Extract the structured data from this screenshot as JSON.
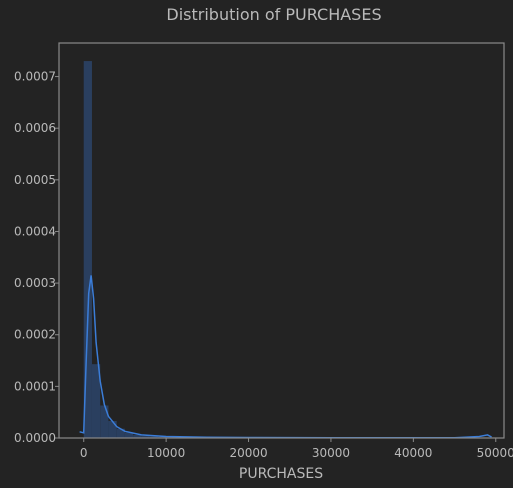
{
  "chart_data": {
    "type": "bar",
    "title": "Distribution of PURCHASES",
    "xlabel": "PURCHASES",
    "ylabel": "",
    "xlim": [
      -3000,
      51000
    ],
    "ylim": [
      0,
      0.000765
    ],
    "xticks": [
      0,
      10000,
      20000,
      30000,
      40000,
      50000
    ],
    "yticks": [
      0.0,
      0.0001,
      0.0002,
      0.0003,
      0.0004,
      0.0005,
      0.0006,
      0.0007
    ],
    "xtick_labels": [
      "0",
      "10000",
      "20000",
      "30000",
      "40000",
      "50000"
    ],
    "ytick_labels": [
      "0.0000",
      "0.0001",
      "0.0002",
      "0.0003",
      "0.0004",
      "0.0005",
      "0.0006",
      "0.0007"
    ],
    "grid": false,
    "histogram": {
      "bin_width": 1000,
      "bins": [
        {
          "x0": 0,
          "x1": 1000,
          "density": 0.00073
        },
        {
          "x0": 1000,
          "x1": 2000,
          "density": 0.000143
        },
        {
          "x0": 2000,
          "x1": 3000,
          "density": 6.3e-05
        },
        {
          "x0": 3000,
          "x1": 4000,
          "density": 3.3e-05
        },
        {
          "x0": 4000,
          "x1": 5000,
          "density": 1.8e-05
        },
        {
          "x0": 5000,
          "x1": 6000,
          "density": 1e-05
        },
        {
          "x0": 6000,
          "x1": 7000,
          "density": 6e-06
        },
        {
          "x0": 7000,
          "x1": 8000,
          "density": 4e-06
        },
        {
          "x0": 8000,
          "x1": 9000,
          "density": 3e-06
        },
        {
          "x0": 9000,
          "x1": 10000,
          "density": 2e-06
        },
        {
          "x0": 10000,
          "x1": 11000,
          "density": 1.5e-06
        },
        {
          "x0": 11000,
          "x1": 12000,
          "density": 1.2e-06
        }
      ]
    },
    "kde": {
      "x": [
        -500,
        0,
        300,
        600,
        900,
        1200,
        1500,
        2000,
        2500,
        3000,
        4000,
        5000,
        7000,
        10000,
        15000,
        20000,
        30000,
        40000,
        45000,
        48000,
        49000,
        49500
      ],
      "y": [
        1.2e-05,
        1e-05,
        0.00015,
        0.00028,
        0.000315,
        0.00027,
        0.000185,
        0.00011,
        6.5e-05,
        4.2e-05,
        2.2e-05,
        1.3e-05,
        6e-06,
        3e-06,
        1.5e-06,
        1e-06,
        5e-07,
        3e-07,
        6e-07,
        3e-06,
        6e-06,
        2e-06
      ]
    },
    "colors": {
      "background": "#232323",
      "axes_frame": "#8a8a8a",
      "text": "#b9b9b9",
      "bar_fill": "#2a3f5f",
      "kde_line": "#3b7dd8"
    }
  }
}
